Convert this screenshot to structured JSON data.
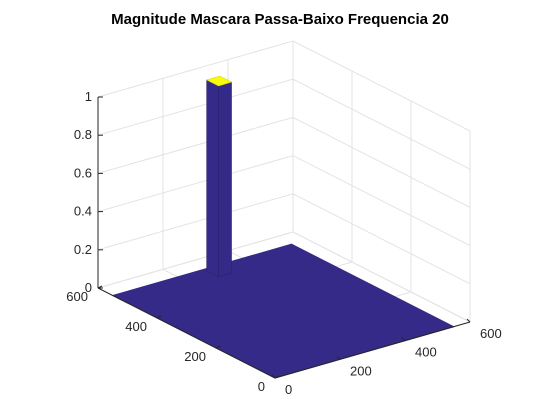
{
  "chart_data": {
    "type": "surface",
    "title": "Magnitude Mascara Passa-Baixo Frequencia 20",
    "xlabel": "",
    "ylabel": "",
    "zlabel": "",
    "x_ticks": [
      0,
      200,
      400,
      600
    ],
    "y_ticks": [
      0,
      200,
      400,
      600
    ],
    "z_ticks": [
      0,
      0.2,
      0.4,
      0.6,
      0.8,
      1
    ],
    "x_ticklabels": [
      "0",
      "200",
      "400",
      "600"
    ],
    "y_ticklabels": [
      "0",
      "200",
      "400",
      "600"
    ],
    "z_ticklabels": [
      "0",
      "0.2",
      "0.4",
      "0.6",
      "0.8",
      "1"
    ],
    "xlim": [
      0,
      600
    ],
    "ylim": [
      0,
      600
    ],
    "zlim": [
      0,
      1
    ],
    "grid": true,
    "surface": {
      "description_values": {
        "base_value": 0,
        "peak_value": 1,
        "peak_x_range": [
          280,
          320
        ],
        "peak_y_range": [
          500,
          540
        ],
        "domain_x": [
          0,
          550
        ],
        "domain_y": [
          0,
          550
        ]
      },
      "colors": {
        "low": "#352a87",
        "high": "#f9fb0e"
      }
    }
  }
}
